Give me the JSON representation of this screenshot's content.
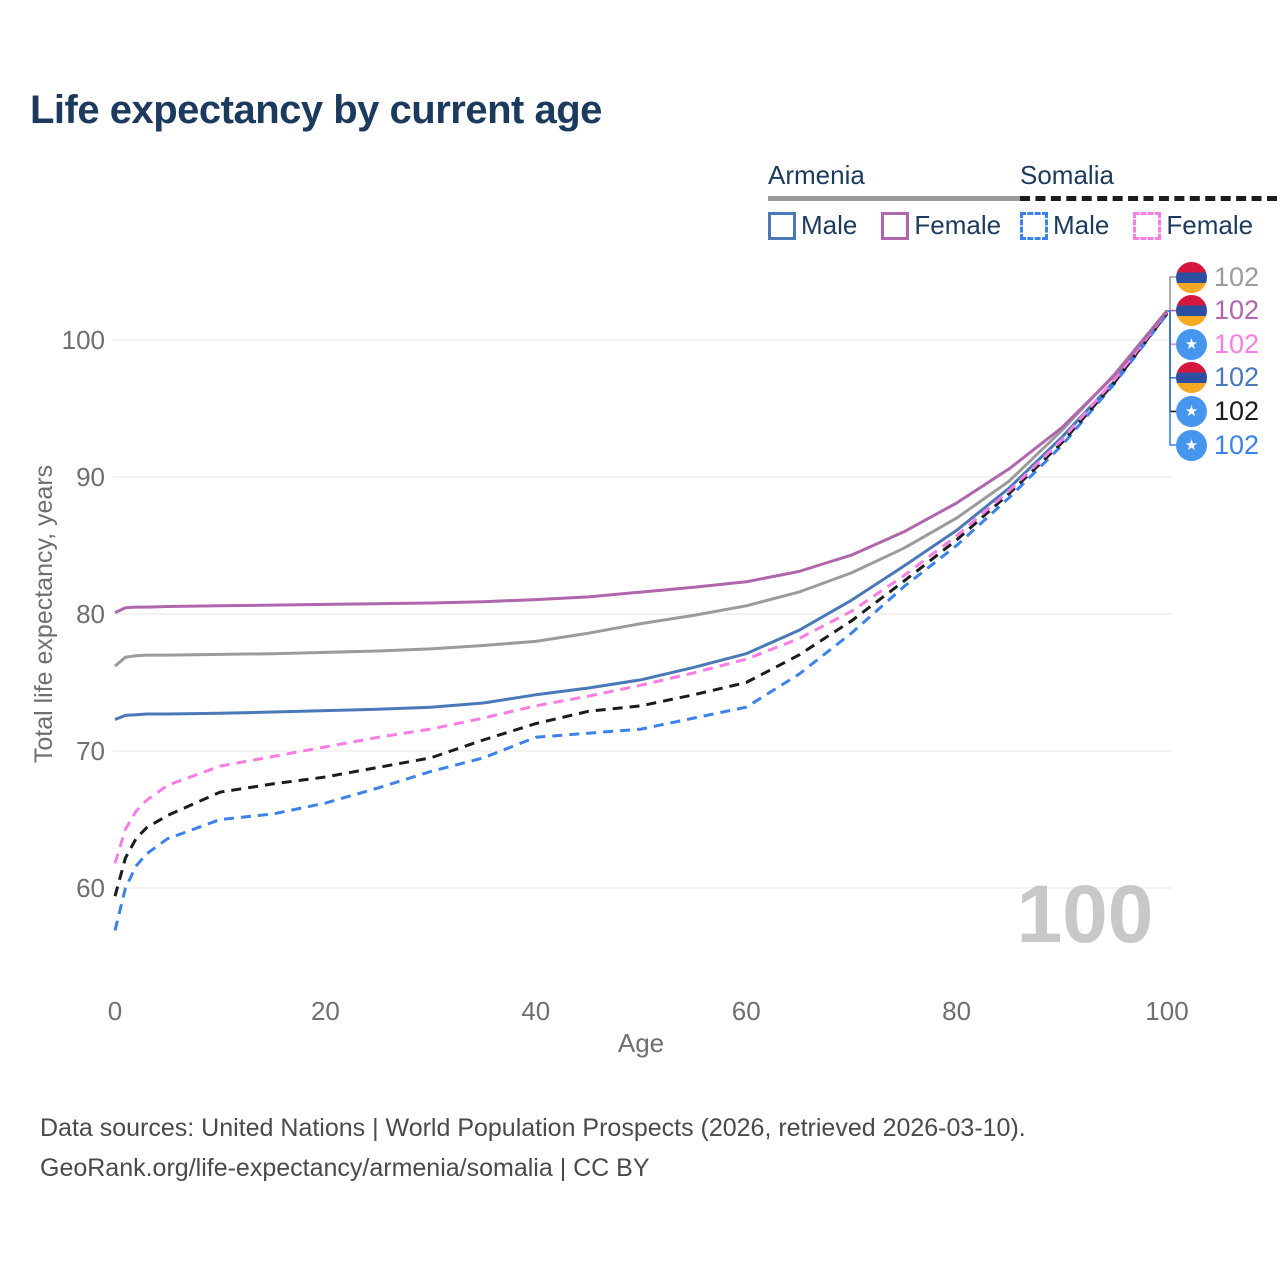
{
  "title": "Life expectancy by current age",
  "watermark": "100",
  "legend": {
    "groups": [
      {
        "country": "Armenia",
        "series_key": "armenia-all",
        "items": [
          {
            "label": "Male",
            "series_key": "armenia-male"
          },
          {
            "label": "Female",
            "series_key": "armenia-female"
          }
        ]
      },
      {
        "country": "Somalia",
        "series_key": "somalia-all",
        "items": [
          {
            "label": "Male",
            "series_key": "somalia-male"
          },
          {
            "label": "Female",
            "series_key": "somalia-female"
          }
        ]
      }
    ]
  },
  "end_labels": [
    {
      "flag": "armenia",
      "value": "102",
      "series_key": "armenia-all"
    },
    {
      "flag": "armenia",
      "value": "102",
      "series_key": "armenia-female"
    },
    {
      "flag": "somalia",
      "value": "102",
      "series_key": "somalia-female"
    },
    {
      "flag": "armenia",
      "value": "102",
      "series_key": "armenia-male"
    },
    {
      "flag": "somalia",
      "value": "102",
      "series_key": "somalia-all"
    },
    {
      "flag": "somalia",
      "value": "102",
      "series_key": "somalia-male"
    }
  ],
  "flag_colors": {
    "armenia_stripes": [
      "#d6173d",
      "#2d4fa2",
      "#f7a823"
    ],
    "somalia_bg": "#4596ec",
    "somalia_star": "#ffffff",
    "somalia_star_glyph": "★"
  },
  "footer": {
    "line1": "Data sources: United Nations | World Population Prospects (2026, retrieved 2026-03-10).",
    "line2": "GeoRank.org/life-expectancy/armenia/somalia | CC BY"
  },
  "chart_data": {
    "type": "line",
    "title": "Life expectancy by current age",
    "xlabel": "Age",
    "ylabel": "Total life expectancy, years",
    "xlim": [
      0,
      100
    ],
    "ylim": [
      55,
      104
    ],
    "xticks": [
      0,
      20,
      40,
      60,
      80,
      100
    ],
    "yticks": [
      60,
      70,
      80,
      90,
      100
    ],
    "grid": "horizontal",
    "legend_position": "top-right",
    "x": [
      0,
      1,
      2,
      3,
      5,
      10,
      15,
      20,
      25,
      30,
      35,
      40,
      45,
      50,
      55,
      60,
      65,
      70,
      75,
      80,
      85,
      90,
      95,
      100
    ],
    "series": [
      {
        "key": "armenia-all",
        "name": "Armenia (both sexes)",
        "color": "#9b9b9b",
        "dash": "solid",
        "values": [
          76.2,
          76.85,
          76.95,
          77.0,
          77.0,
          77.05,
          77.1,
          77.2,
          77.3,
          77.45,
          77.7,
          78.0,
          78.6,
          79.3,
          79.9,
          80.6,
          81.6,
          83.0,
          84.8,
          87.0,
          89.7,
          93.4,
          97.5,
          102.15
        ]
      },
      {
        "key": "armenia-female",
        "name": "Armenia Female",
        "color": "#b066ad",
        "dash": "solid",
        "values": [
          80.1,
          80.45,
          80.5,
          80.5,
          80.55,
          80.6,
          80.65,
          80.7,
          80.75,
          80.8,
          80.9,
          81.05,
          81.25,
          81.6,
          81.95,
          82.35,
          83.1,
          84.3,
          86.0,
          88.1,
          90.6,
          93.6,
          97.4,
          102.1
        ]
      },
      {
        "key": "armenia-male",
        "name": "Armenia Male",
        "color": "#4a79b8",
        "dash": "solid",
        "values": [
          72.3,
          72.6,
          72.65,
          72.7,
          72.7,
          72.75,
          72.85,
          72.95,
          73.05,
          73.2,
          73.5,
          74.1,
          74.6,
          75.2,
          76.1,
          77.1,
          78.8,
          81.0,
          83.5,
          86.1,
          89.2,
          92.9,
          97.0,
          102.0
        ]
      },
      {
        "key": "somalia-female",
        "name": "Somalia Female",
        "color": "#fb7de4",
        "dash": "dashed",
        "values": [
          61.8,
          64.3,
          65.6,
          66.4,
          67.5,
          68.9,
          69.6,
          70.3,
          71.0,
          71.6,
          72.4,
          73.3,
          74.0,
          74.8,
          75.7,
          76.7,
          78.2,
          80.2,
          82.8,
          85.7,
          89.0,
          92.7,
          97.1,
          102.05
        ]
      },
      {
        "key": "somalia-all",
        "name": "Somalia (both sexes)",
        "color": "#1c1c1c",
        "dash": "dashed",
        "values": [
          59.4,
          62.2,
          63.6,
          64.4,
          65.3,
          67.0,
          67.6,
          68.1,
          68.8,
          69.5,
          70.8,
          72.0,
          72.9,
          73.3,
          74.1,
          75.0,
          77.0,
          79.5,
          82.4,
          85.4,
          88.8,
          92.5,
          96.9,
          101.95
        ]
      },
      {
        "key": "somalia-male",
        "name": "Somalia Male",
        "color": "#3b82ea",
        "dash": "dashed",
        "values": [
          56.9,
          60.0,
          61.6,
          62.5,
          63.6,
          65.0,
          65.4,
          66.2,
          67.3,
          68.5,
          69.5,
          71.0,
          71.3,
          71.6,
          72.4,
          73.2,
          75.6,
          78.6,
          82.0,
          85.0,
          88.5,
          92.3,
          96.8,
          101.9
        ]
      }
    ]
  }
}
